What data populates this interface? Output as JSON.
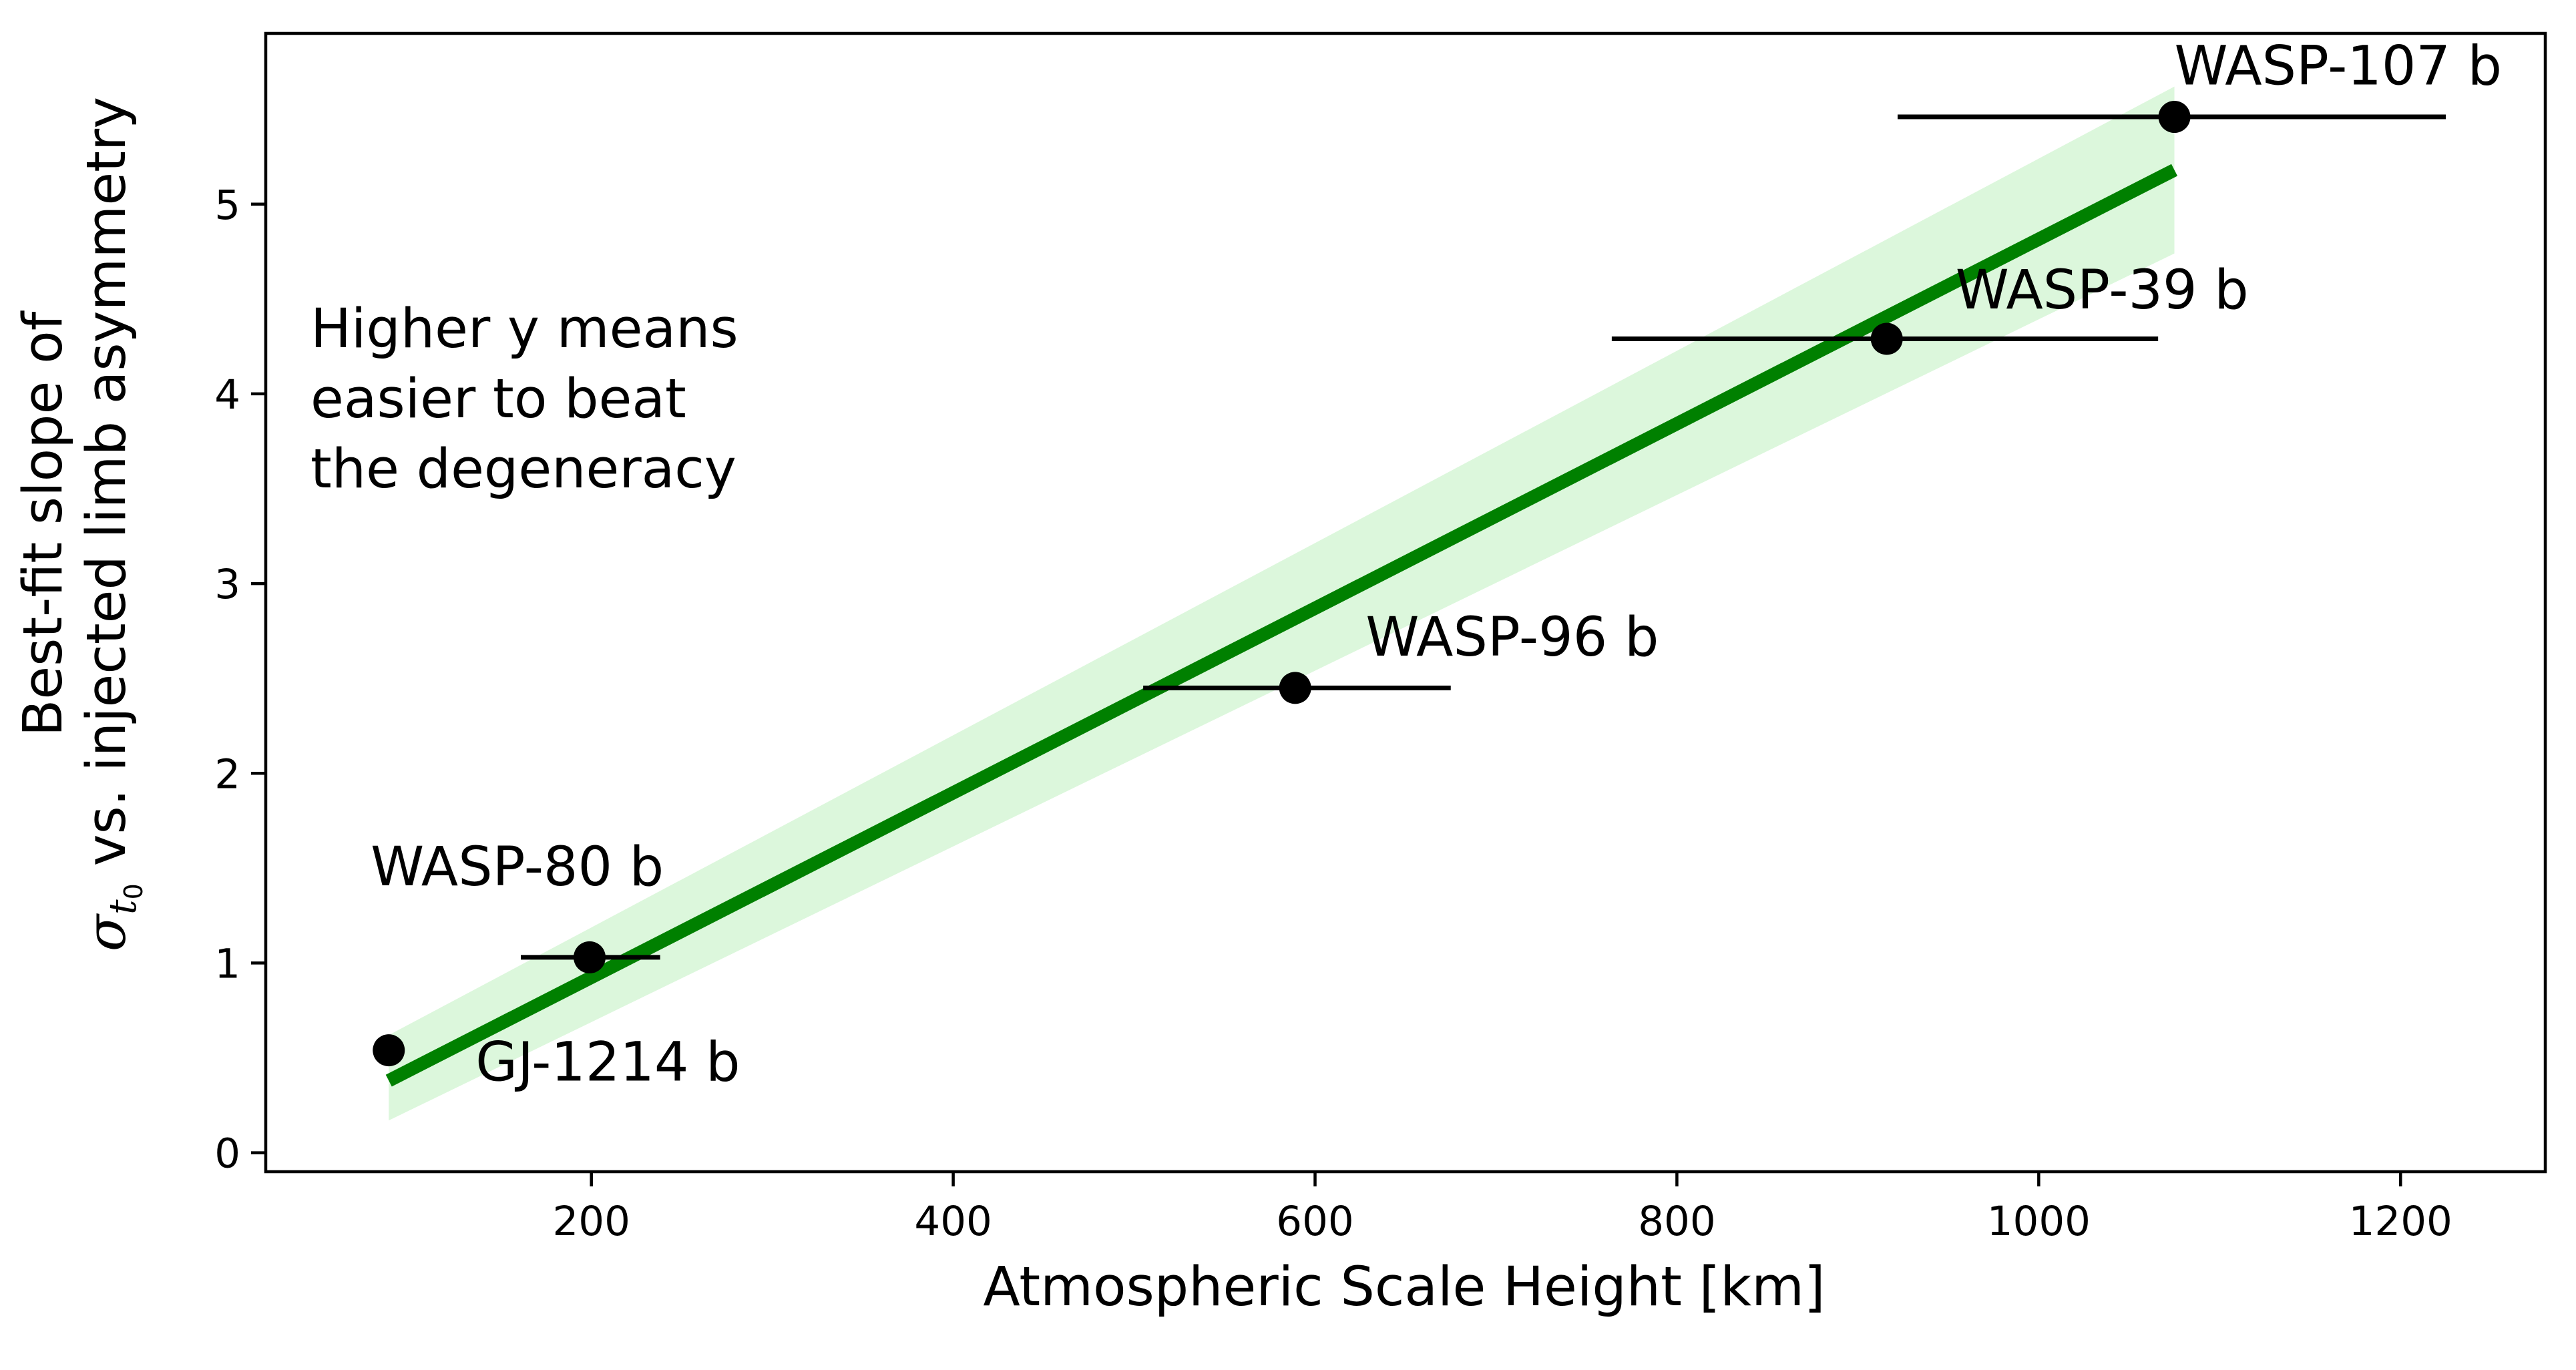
{
  "chart_data": {
    "type": "scatter",
    "xlabel": "Atmospheric Scale Height [km]",
    "ylabel_line1": "Best-fit slope of",
    "ylabel_line2_sigma": "σ",
    "ylabel_line2_sub_t": "t",
    "ylabel_line2_sub_0": "0",
    "ylabel_line2_rest": " vs. injected limb asymmetry",
    "xlim": [
      20,
      1280
    ],
    "ylim": [
      -0.1,
      5.9
    ],
    "xticks": [
      200,
      400,
      600,
      800,
      1000,
      1200
    ],
    "yticks": [
      0,
      1,
      2,
      3,
      4,
      5
    ],
    "grid": false,
    "annotation": [
      "Higher y means",
      "easier to beat",
      "the degeneracy"
    ],
    "points": [
      {
        "name": "GJ-1214 b",
        "x": 88,
        "y": 0.54,
        "xerr": null
      },
      {
        "name": "WASP-80 b",
        "x": 199,
        "y": 1.03,
        "xerr": [
          161,
          238
        ]
      },
      {
        "name": "WASP-96 b",
        "x": 589,
        "y": 2.45,
        "xerr": [
          505,
          675
        ]
      },
      {
        "name": "WASP-39 b",
        "x": 916,
        "y": 4.29,
        "xerr": [
          764,
          1066
        ]
      },
      {
        "name": "WASP-107 b",
        "x": 1075,
        "y": 5.46,
        "xerr": [
          922,
          1225
        ]
      }
    ],
    "fit_line": {
      "x": [
        88,
        1075
      ],
      "y": [
        0.38,
        5.18
      ]
    },
    "fit_band": {
      "x": [
        88,
        1075
      ],
      "upper": [
        0.62,
        5.62
      ],
      "lower": [
        0.17,
        4.74
      ]
    },
    "colors": {
      "fit": "#008000",
      "band": "#dcf7dc",
      "points": "#000000"
    }
  }
}
